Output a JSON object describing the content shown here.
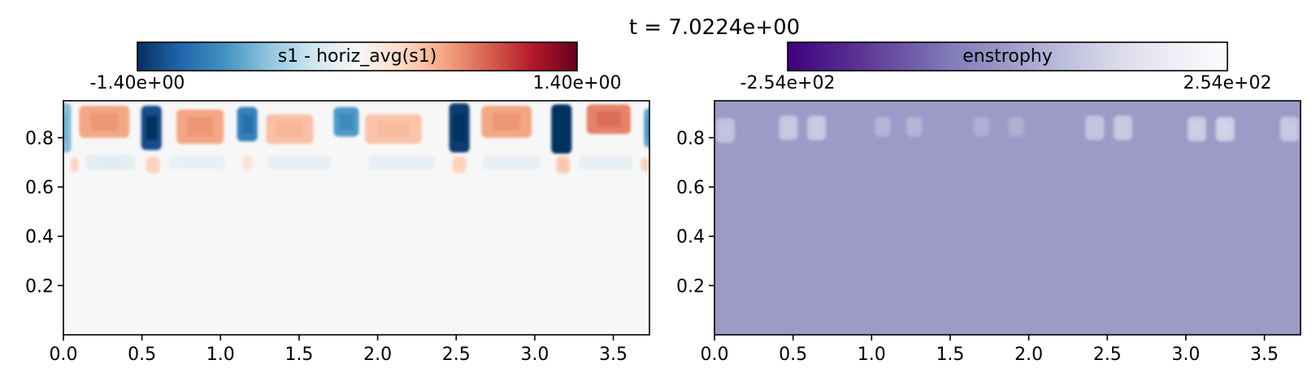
{
  "figure_title": "t = 7.0224e+00",
  "chart_data": [
    {
      "type": "heatmap",
      "title": "",
      "colorbar": {
        "label": "s1 - horiz_avg(s1)",
        "min_label": "-1.40e+00",
        "max_label": "1.40e+00",
        "vmin": -1.4,
        "vmax": 1.4,
        "colormap": "RdBu_r",
        "colors": [
          "#053061",
          "#2166ac",
          "#4393c3",
          "#92c5de",
          "#d1e5f0",
          "#f7f7f7",
          "#fddbc7",
          "#f4a582",
          "#d6604d",
          "#b2182b",
          "#67001f"
        ]
      },
      "xlim": [
        0,
        3.73
      ],
      "ylim": [
        0,
        0.95
      ],
      "xticks": [
        0.0,
        0.5,
        1.0,
        1.5,
        2.0,
        2.5,
        3.0,
        3.5
      ],
      "xtick_labels": [
        "0.0",
        "0.5",
        "1.0",
        "1.5",
        "2.0",
        "2.5",
        "3.0",
        "3.5"
      ],
      "yticks": [
        0.2,
        0.4,
        0.6,
        0.8
      ],
      "ytick_labels": [
        "0.2",
        "0.4",
        "0.6",
        "0.8"
      ],
      "background_value": 0.0,
      "features": [
        {
          "x": 0.0,
          "w": 0.1,
          "y_center": 0.84,
          "h": 0.2,
          "value": -0.6
        },
        {
          "x": 0.26,
          "w": 0.32,
          "y_center": 0.865,
          "h": 0.13,
          "value": 0.55
        },
        {
          "x": 0.56,
          "w": 0.13,
          "y_center": 0.84,
          "h": 0.18,
          "value": -1.25
        },
        {
          "x": 0.87,
          "w": 0.3,
          "y_center": 0.845,
          "h": 0.14,
          "value": 0.55
        },
        {
          "x": 1.17,
          "w": 0.13,
          "y_center": 0.855,
          "h": 0.14,
          "value": -0.95
        },
        {
          "x": 1.44,
          "w": 0.3,
          "y_center": 0.835,
          "h": 0.12,
          "value": 0.42
        },
        {
          "x": 1.8,
          "w": 0.16,
          "y_center": 0.865,
          "h": 0.12,
          "value": -0.8
        },
        {
          "x": 2.1,
          "w": 0.36,
          "y_center": 0.835,
          "h": 0.12,
          "value": 0.4
        },
        {
          "x": 2.52,
          "w": 0.13,
          "y_center": 0.84,
          "h": 0.2,
          "value": -1.35
        },
        {
          "x": 2.82,
          "w": 0.32,
          "y_center": 0.865,
          "h": 0.13,
          "value": 0.55
        },
        {
          "x": 3.17,
          "w": 0.13,
          "y_center": 0.835,
          "h": 0.2,
          "value": -1.4
        },
        {
          "x": 3.47,
          "w": 0.28,
          "y_center": 0.875,
          "h": 0.12,
          "value": 0.7
        },
        {
          "x": 3.73,
          "w": 0.07,
          "y_center": 0.84,
          "h": 0.16,
          "value": -0.75
        },
        {
          "x": 0.07,
          "w": 0.05,
          "y_center": 0.69,
          "h": 0.06,
          "value": 0.3
        },
        {
          "x": 0.57,
          "w": 0.09,
          "y_center": 0.69,
          "h": 0.07,
          "value": 0.3
        },
        {
          "x": 1.17,
          "w": 0.07,
          "y_center": 0.7,
          "h": 0.06,
          "value": 0.18
        },
        {
          "x": 2.52,
          "w": 0.09,
          "y_center": 0.69,
          "h": 0.07,
          "value": 0.3
        },
        {
          "x": 3.18,
          "w": 0.09,
          "y_center": 0.69,
          "h": 0.07,
          "value": 0.35
        },
        {
          "x": 3.7,
          "w": 0.05,
          "y_center": 0.69,
          "h": 0.06,
          "value": 0.3
        },
        {
          "x": 0.3,
          "w": 0.32,
          "y_center": 0.7,
          "h": 0.06,
          "value": -0.15
        },
        {
          "x": 0.85,
          "w": 0.36,
          "y_center": 0.7,
          "h": 0.06,
          "value": -0.1
        },
        {
          "x": 1.5,
          "w": 0.4,
          "y_center": 0.7,
          "h": 0.06,
          "value": -0.12
        },
        {
          "x": 2.15,
          "w": 0.42,
          "y_center": 0.7,
          "h": 0.06,
          "value": -0.12
        },
        {
          "x": 2.85,
          "w": 0.36,
          "y_center": 0.7,
          "h": 0.06,
          "value": -0.12
        },
        {
          "x": 3.45,
          "w": 0.34,
          "y_center": 0.7,
          "h": 0.06,
          "value": -0.12
        }
      ]
    },
    {
      "type": "heatmap",
      "title": "",
      "colorbar": {
        "label": "enstrophy",
        "min_label": "-2.54e+02",
        "max_label": "2.54e+02",
        "vmin": -254,
        "vmax": 254,
        "colormap": "Purples_r",
        "colors": [
          "#3f007d",
          "#54278f",
          "#6a51a3",
          "#807dba",
          "#9e9ac8",
          "#bcbddc",
          "#dadaeb",
          "#efedf5",
          "#fcfbfd"
        ]
      },
      "xlim": [
        0,
        3.73
      ],
      "ylim": [
        0,
        0.95
      ],
      "xticks": [
        0.0,
        0.5,
        1.0,
        1.5,
        2.0,
        2.5,
        3.0,
        3.5
      ],
      "xtick_labels": [
        "0.0",
        "0.5",
        "1.0",
        "1.5",
        "2.0",
        "2.5",
        "3.0",
        "3.5"
      ],
      "yticks": [
        0.2,
        0.4,
        0.6,
        0.8
      ],
      "ytick_labels": [
        "0.2",
        "0.4",
        "0.6",
        "0.8"
      ],
      "background_value": 0.0,
      "features": [
        {
          "x": 0.07,
          "w": 0.12,
          "y_center": 0.83,
          "h": 0.1,
          "value": 70
        },
        {
          "x": 0.47,
          "w": 0.12,
          "y_center": 0.84,
          "h": 0.1,
          "value": 80
        },
        {
          "x": 0.65,
          "w": 0.12,
          "y_center": 0.84,
          "h": 0.1,
          "value": 85
        },
        {
          "x": 1.07,
          "w": 0.1,
          "y_center": 0.845,
          "h": 0.08,
          "value": 45
        },
        {
          "x": 1.27,
          "w": 0.1,
          "y_center": 0.845,
          "h": 0.08,
          "value": 45
        },
        {
          "x": 1.7,
          "w": 0.1,
          "y_center": 0.845,
          "h": 0.08,
          "value": 35
        },
        {
          "x": 1.92,
          "w": 0.1,
          "y_center": 0.845,
          "h": 0.08,
          "value": 35
        },
        {
          "x": 2.42,
          "w": 0.12,
          "y_center": 0.84,
          "h": 0.1,
          "value": 75
        },
        {
          "x": 2.6,
          "w": 0.12,
          "y_center": 0.84,
          "h": 0.1,
          "value": 85
        },
        {
          "x": 3.07,
          "w": 0.12,
          "y_center": 0.835,
          "h": 0.1,
          "value": 90
        },
        {
          "x": 3.25,
          "w": 0.12,
          "y_center": 0.835,
          "h": 0.1,
          "value": 100
        },
        {
          "x": 3.66,
          "w": 0.12,
          "y_center": 0.835,
          "h": 0.1,
          "value": 80
        }
      ]
    }
  ]
}
